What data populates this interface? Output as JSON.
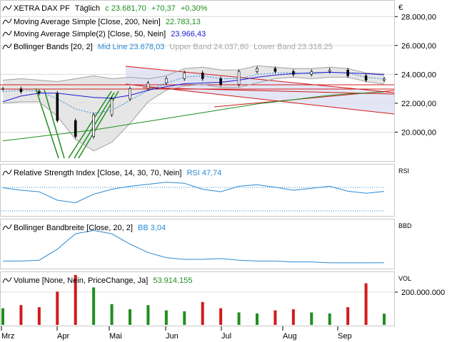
{
  "currency_symbol": "€",
  "colors": {
    "price": "#000000",
    "ma200": "#1f8f1f",
    "ma50": "#1a1ad6",
    "mid": "#2a8ad4",
    "band": "#a0a0a0",
    "band_fill": "#e0e0e0",
    "trend": "#d31a1a",
    "channel_fill": "#dde0f2",
    "fan": "#1f8f1f",
    "rsi": "#2a8ad4",
    "bbw": "#2a8ad4",
    "up": "#1f8f1f",
    "down": "#d31a1a",
    "grid": "#dcdcdc",
    "green_text": "#1f8f1f",
    "blue_text": "#2a8ad4",
    "gray_text": "#a8a8a8"
  },
  "months": [
    "Mrz",
    "Apr",
    "Mai",
    "Jun",
    "Jul",
    "Aug",
    "Sep"
  ],
  "panes": {
    "price": {
      "title": "XETRA DAX PF",
      "period": "Täglich",
      "last_value": "c 23.681,70",
      "change": "+70,37",
      "change_pct": "+0,30%",
      "ma200": {
        "label": "Moving Average Simple [Close, 200, Nein]",
        "value": "22.783,13"
      },
      "ma50": {
        "label": "Moving Average Simple(2) [Close, 50, Nein]",
        "value": "23.966,43"
      },
      "bb": {
        "label": "Bollinger Bands [20, 2]",
        "mid": "Mid Line 23.678,03",
        "upper": "Upper Band 24.037,80",
        "lower": "Lower Band 23.318,25"
      },
      "y_ticks": [
        "28.000,00",
        "26.000,00",
        "24.000,00",
        "22.000,00",
        "20.000,00"
      ]
    },
    "rsi": {
      "label": "Relative Strength Index [Close, 14, 30, 70, Nein]",
      "value": "RSI 47,74",
      "axis": "RSI"
    },
    "bbw": {
      "label": "Bollinger Bandbreite [Close, 20, 2]",
      "value": "BB 3,04",
      "axis": "BBD"
    },
    "volume": {
      "label": "Volume [None, Nein, PriceChange, Ja]",
      "value": "53.914.155",
      "axis": "VOL",
      "y_tick": "200.000.000"
    }
  },
  "chart_data": [
    {
      "type": "line",
      "title": "XETRA DAX PF",
      "ylim": [
        18000,
        29000
      ],
      "x": [
        "Mrz",
        "Mrz",
        "Mrz",
        "Apr",
        "Apr",
        "Apr",
        "Apr",
        "Mai",
        "Mai",
        "Mai",
        "Jun",
        "Jun",
        "Jun",
        "Jul",
        "Jul",
        "Jul",
        "Aug",
        "Aug",
        "Aug",
        "Sep",
        "Sep",
        "Sep"
      ],
      "series": [
        {
          "name": "XETRA DAX PF",
          "values": [
            23000,
            22800,
            22700,
            20800,
            19700,
            21200,
            22300,
            23000,
            23400,
            23700,
            24100,
            23700,
            23300,
            24200,
            24400,
            24200,
            24000,
            24200,
            24300,
            23900,
            23600,
            23682
          ]
        },
        {
          "name": "Moving Average Simple [Close, 200, Nein]",
          "values": [
            19400,
            19550,
            19700,
            19850,
            20000,
            20150,
            20350,
            20550,
            20750,
            20950,
            21150,
            21350,
            21550,
            21750,
            21950,
            22100,
            22250,
            22400,
            22550,
            22650,
            22720,
            22783
          ]
        },
        {
          "name": "Moving Average Simple(2) [Close, 50, Nein]",
          "values": [
            22100,
            22500,
            22700,
            22700,
            22550,
            22400,
            22350,
            22550,
            22900,
            23150,
            23350,
            23400,
            23450,
            23600,
            23800,
            23950,
            24050,
            24100,
            24150,
            24100,
            24050,
            23966
          ]
        },
        {
          "name": "Bollinger Bands Mid Line",
          "values": [
            22800,
            22900,
            22850,
            22300,
            21600,
            21300,
            21500,
            22200,
            22900,
            23400,
            23800,
            23900,
            23700,
            23700,
            24000,
            24100,
            24100,
            24050,
            24150,
            24100,
            23800,
            23678
          ]
        },
        {
          "name": "Upper Band",
          "values": [
            23600,
            23700,
            23600,
            23500,
            23700,
            23900,
            23700,
            23800,
            23700,
            23900,
            24400,
            24500,
            24300,
            24300,
            24600,
            24500,
            24400,
            24400,
            24500,
            24400,
            24100,
            24038
          ]
        },
        {
          "name": "Lower Band",
          "values": [
            22000,
            22100,
            22100,
            21100,
            19500,
            18700,
            19300,
            20600,
            22100,
            22900,
            23200,
            23300,
            23100,
            23100,
            23400,
            23700,
            23800,
            23700,
            23800,
            23800,
            23500,
            23318
          ]
        }
      ]
    },
    {
      "type": "line",
      "title": "Relative Strength Index [Close, 14, 30, 70, Nein]",
      "ylim": [
        0,
        100
      ],
      "x": [
        "Mrz",
        "Mrz",
        "Mrz",
        "Apr",
        "Apr",
        "Apr",
        "Apr",
        "Mai",
        "Mai",
        "Mai",
        "Jun",
        "Jun",
        "Jun",
        "Jul",
        "Jul",
        "Jul",
        "Aug",
        "Aug",
        "Aug",
        "Sep",
        "Sep",
        "Sep"
      ],
      "series": [
        {
          "name": "RSI",
          "values": [
            55,
            50,
            47,
            30,
            25,
            42,
            52,
            58,
            62,
            66,
            64,
            52,
            47,
            58,
            61,
            56,
            50,
            54,
            58,
            48,
            44,
            47.74
          ]
        }
      ]
    },
    {
      "type": "line",
      "title": "Bollinger Bandbreite [Close, 20, 2]",
      "x": [
        "Mrz",
        "Mrz",
        "Mrz",
        "Apr",
        "Apr",
        "Apr",
        "Apr",
        "Mai",
        "Mai",
        "Mai",
        "Jun",
        "Jun",
        "Jun",
        "Jul",
        "Jul",
        "Jul",
        "Aug",
        "Aug",
        "Aug",
        "Sep",
        "Sep",
        "Sep"
      ],
      "series": [
        {
          "name": "BB",
          "values": [
            4,
            4,
            4.5,
            11,
            20,
            22,
            20,
            14,
            9,
            6,
            5,
            5,
            5.5,
            4.5,
            4,
            4,
            3.5,
            3.5,
            3,
            3,
            3,
            3.04
          ]
        }
      ]
    },
    {
      "type": "bar",
      "title": "Volume [None, Nein, PriceChange, Ja]",
      "ylim": [
        0,
        250000000
      ],
      "categories": [
        "Mrz",
        "Mrz",
        "Mrz",
        "Apr",
        "Apr",
        "Apr",
        "Apr",
        "Mai",
        "Mai",
        "Mai",
        "Jun",
        "Jun",
        "Jun",
        "Jul",
        "Jul",
        "Jul",
        "Aug",
        "Aug",
        "Aug",
        "Sep",
        "Sep",
        "Sep"
      ],
      "series": [
        {
          "name": "Volume",
          "values": [
            80000000,
            95000000,
            85000000,
            160000000,
            240000000,
            180000000,
            100000000,
            75000000,
            95000000,
            70000000,
            65000000,
            110000000,
            80000000,
            60000000,
            55000000,
            70000000,
            75000000,
            60000000,
            55000000,
            85000000,
            200000000,
            53914155
          ]
        }
      ]
    }
  ]
}
